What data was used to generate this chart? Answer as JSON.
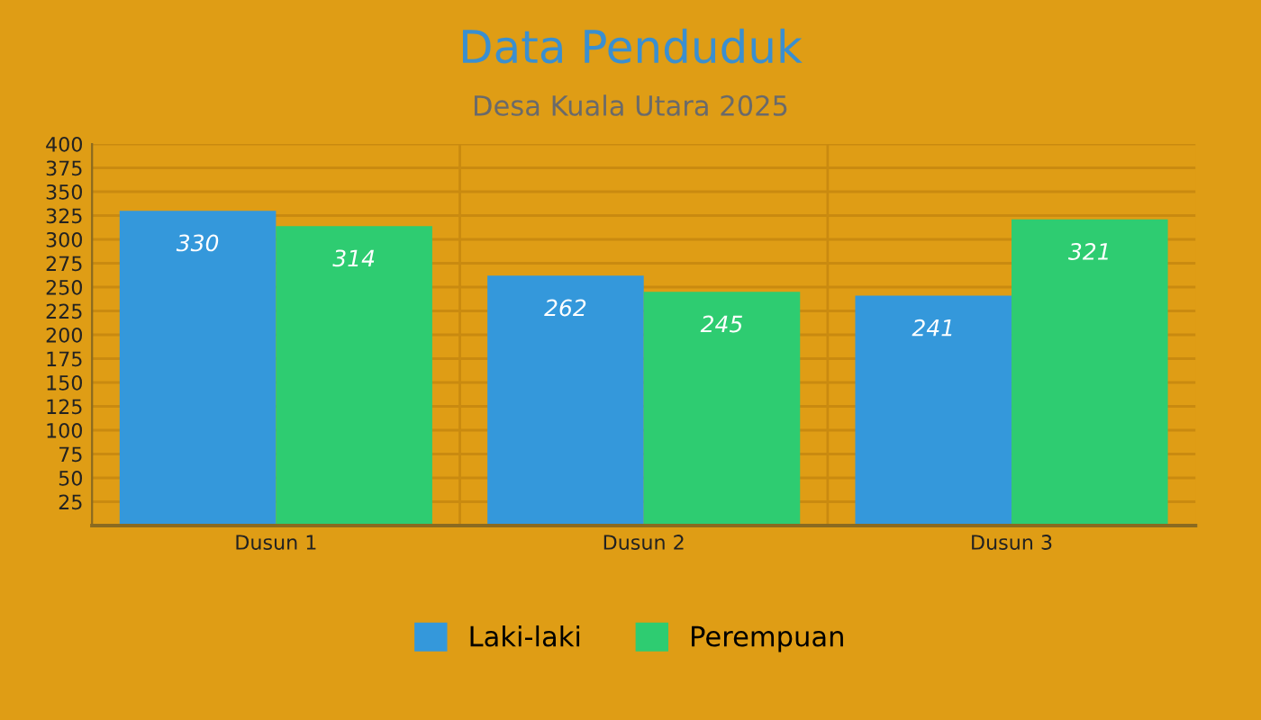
{
  "chart_data": {
    "type": "bar",
    "title": "Data Penduduk",
    "subtitle": "Desa Kuala Utara 2025",
    "categories": [
      "Dusun 1",
      "Dusun 2",
      "Dusun 3"
    ],
    "series": [
      {
        "name": "Laki-laki",
        "color": "#3498db",
        "values": [
          330,
          262,
          241
        ]
      },
      {
        "name": "Perempuan",
        "color": "#2ecc71",
        "values": [
          314,
          245,
          321
        ]
      }
    ],
    "ylim": [
      0,
      400
    ],
    "yticks": [
      25,
      50,
      75,
      100,
      125,
      150,
      175,
      200,
      225,
      250,
      275,
      300,
      325,
      350,
      375,
      400
    ],
    "grid": true,
    "legend": "bottom",
    "data_labels": true
  }
}
